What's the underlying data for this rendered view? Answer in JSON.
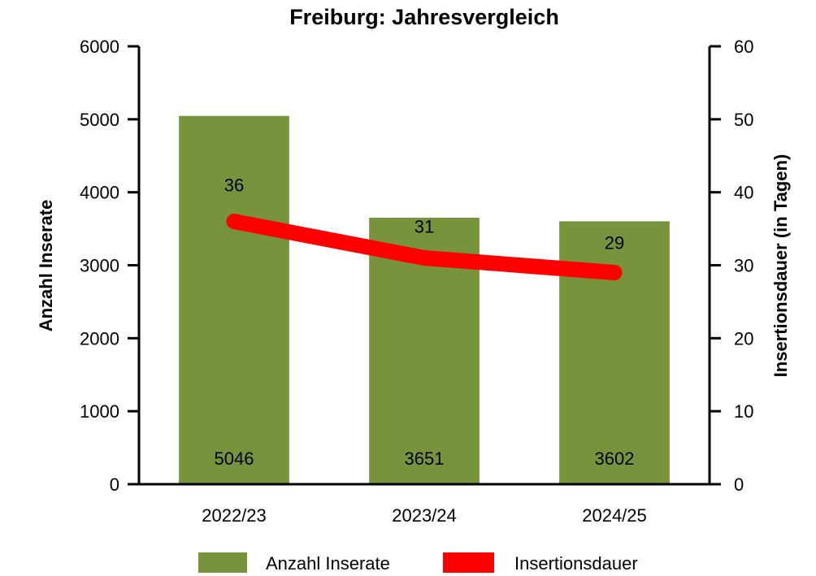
{
  "chart_data": {
    "type": "bar",
    "title": "Freiburg: Jahresvergleich",
    "categories": [
      "2022/23",
      "2023/24",
      "2024/25"
    ],
    "series": [
      {
        "name": "Anzahl Inserate",
        "kind": "bar",
        "axis": "left",
        "color": "#77933C",
        "values": [
          5046,
          3651,
          3602
        ]
      },
      {
        "name": "Insertionsdauer",
        "kind": "line",
        "axis": "right",
        "color": "#FF0000",
        "values": [
          36,
          31,
          29
        ]
      }
    ],
    "ylabel": "Anzahl Inserate",
    "y2label": "Insertionsdauer (in Tagen)",
    "ylim": [
      0,
      6000
    ],
    "y2lim": [
      0,
      60
    ],
    "yticks": [
      0,
      1000,
      2000,
      3000,
      4000,
      5000,
      6000
    ],
    "y2ticks": [
      0,
      10,
      20,
      30,
      40,
      50,
      60
    ],
    "grid": false,
    "legend_position": "bottom"
  }
}
